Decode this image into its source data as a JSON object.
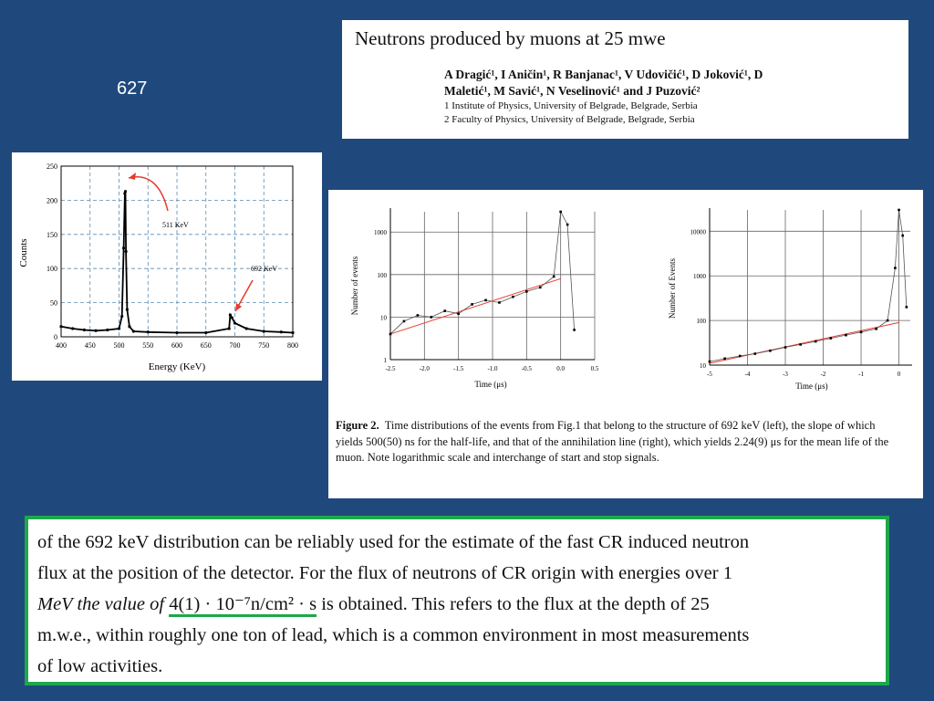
{
  "slide_number": "627",
  "paper": {
    "title": "Neutrons produced by muons at 25 mwe",
    "authors_line1": "A Dragić¹, I Aničin¹, R Banjanac¹, V Udovičić¹, D Joković¹, D",
    "authors_line2": "Maletić¹, M Savić¹, N Veselinović¹ and J Puzović²",
    "affiliation1": "1 Institute of Physics, University of Belgrade, Belgrade, Serbia",
    "affiliation2": "2 Faculty of Physics, University of Belgrade, Belgrade, Serbia"
  },
  "spectrum": {
    "xlabel": "Energy (KeV)",
    "ylabel": "Counts",
    "x_ticks": [
      "400",
      "450",
      "500",
      "550",
      "600",
      "650",
      "700",
      "750",
      "800"
    ],
    "y_ticks": [
      "0",
      "50",
      "100",
      "150",
      "200",
      "250"
    ],
    "annotation_511": "511 KeV",
    "annotation_692": "692 KeV"
  },
  "figure2": {
    "left_ylabel": "Number of events",
    "left_xlabel": "Time (μs)",
    "left_x_ticks": [
      "-2.5",
      "-2.0",
      "-1.5",
      "-1.0",
      "-0.5",
      "0.0",
      "0.5"
    ],
    "left_y_ticks": [
      "1",
      "10",
      "100",
      "1000"
    ],
    "right_ylabel": "Number of Events",
    "right_xlabel": "Time (μs)",
    "right_x_ticks": [
      "-5",
      "-4",
      "-3",
      "-2",
      "-1",
      "0"
    ],
    "right_y_ticks": [
      "10",
      "100",
      "1000",
      "10000"
    ],
    "caption_label": "Figure 2.",
    "caption_text": "Time distributions of the events from Fig.1 that belong to the structure of 692 keV (left), the slope of which yields 500(50) ns for the half-life, and that of the annihilation line (right), which yields 2.24(9) μs for the mean life of the muon. Note logarithmic scale and interchange of start and stop signals."
  },
  "chart_data": [
    {
      "type": "line",
      "title": "",
      "xlabel": "Energy (KeV)",
      "ylabel": "Counts",
      "xlim": [
        400,
        800
      ],
      "ylim": [
        0,
        250
      ],
      "grid": true,
      "x": [
        400,
        420,
        440,
        460,
        480,
        500,
        505,
        508,
        510,
        511,
        512,
        514,
        518,
        525,
        550,
        600,
        650,
        690,
        692,
        695,
        700,
        720,
        750,
        780,
        800
      ],
      "values": [
        15,
        12,
        10,
        9,
        10,
        12,
        30,
        130,
        210,
        213,
        125,
        40,
        15,
        8,
        7,
        6,
        6,
        12,
        32,
        28,
        20,
        12,
        8,
        7,
        6
      ],
      "annotations": [
        "511 KeV",
        "692 KeV"
      ]
    },
    {
      "type": "scatter",
      "title": "",
      "xlabel": "Time (μs)",
      "ylabel": "Number of events",
      "xlim": [
        -2.5,
        0.5
      ],
      "ylim": [
        1,
        3000
      ],
      "log_y": true,
      "x": [
        -2.5,
        -2.3,
        -2.1,
        -1.9,
        -1.7,
        -1.5,
        -1.3,
        -1.1,
        -0.9,
        -0.7,
        -0.5,
        -0.3,
        -0.1,
        0.0,
        0.1,
        0.2
      ],
      "values": [
        4,
        8,
        11,
        10,
        14,
        12,
        20,
        25,
        22,
        30,
        40,
        50,
        90,
        3000,
        1500,
        5
      ],
      "fit_line": {
        "x": [
          -2.5,
          0.0
        ],
        "y": [
          4,
          80
        ]
      }
    },
    {
      "type": "scatter",
      "title": "",
      "xlabel": "Time (μs)",
      "ylabel": "Number of Events",
      "xlim": [
        -5,
        0.3
      ],
      "ylim": [
        10,
        30000
      ],
      "log_y": true,
      "x": [
        -5,
        -4.6,
        -4.2,
        -3.8,
        -3.4,
        -3.0,
        -2.6,
        -2.2,
        -1.8,
        -1.4,
        -1.0,
        -0.6,
        -0.3,
        -0.1,
        0.0,
        0.1,
        0.2
      ],
      "values": [
        12,
        14,
        16,
        18,
        21,
        25,
        29,
        34,
        40,
        47,
        55,
        65,
        100,
        1500,
        30000,
        8000,
        200
      ],
      "fit_line": {
        "x": [
          -5,
          0.0
        ],
        "y": [
          11,
          90
        ]
      }
    }
  ],
  "quote": {
    "line1": "of the 692 keV distribution can be reliably used for the estimate of the fast CR induced neutron",
    "line2": "flux at the position of the detector. For the flux of neutrons of CR origin with energies over 1",
    "line3_pre": "MeV the value of ",
    "line3_ul": "4(1) · 10⁻⁷n/cm² · s",
    "line3_post": " is obtained. This refers to the flux at the depth of 25",
    "line4": "m.w.e., within roughly one ton of lead, which is a common environment in most measurements",
    "line5": "of low activities."
  },
  "colors": {
    "background": "#1f497d",
    "quote_border": "#1ea84a",
    "annotation_arrow": "#e8392e"
  }
}
